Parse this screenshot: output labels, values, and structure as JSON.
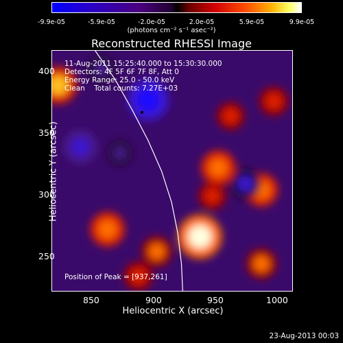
{
  "colorbar": {
    "ticks": [
      "-9.9e-05",
      "-5.9e-05",
      "-2.0e-05",
      "2.0e-05",
      "5.9e-05",
      "9.9e-05"
    ],
    "unit": "(photons cm⁻² s⁻¹ asec⁻²)"
  },
  "chart_data": {
    "type": "heatmap",
    "title": "Reconstructed RHESSI Image",
    "xlabel": "Heliocentric X (arcsec)",
    "ylabel": "Heliocentric Y (arcsec)",
    "xlim": [
      815,
      1010
    ],
    "ylim": [
      218,
      413
    ],
    "x_ticks": [
      "850",
      "900",
      "950",
      "1000"
    ],
    "y_ticks": [
      "250",
      "300",
      "350",
      "400"
    ],
    "colorbar_range": [
      -9.9e-05,
      9.9e-05
    ],
    "annotations": [
      "11-Aug-2011 15:25:40.000 to 15:30:30.000",
      "Detectors: 4F 5F 6F 7F 8F, Att 0",
      "Energy Range: 25.0 - 50.0 keV",
      "Clean    Total counts: 7.27E+03"
    ],
    "peak_label": "Position of Peak = [937,261]",
    "peak": {
      "x": 937,
      "y": 261
    },
    "marked_point": {
      "x": 888,
      "y": 363
    },
    "sources": [
      {
        "x": 935,
        "y": 262,
        "value": 9.9e-05
      },
      {
        "x": 820,
        "y": 385,
        "value": 7.5e-05
      },
      {
        "x": 950,
        "y": 318,
        "value": 6.5e-05
      },
      {
        "x": 985,
        "y": 300,
        "value": 6e-05
      },
      {
        "x": 860,
        "y": 268,
        "value": 6.5e-05
      },
      {
        "x": 900,
        "y": 250,
        "value": 5e-05
      },
      {
        "x": 995,
        "y": 372,
        "value": 4.5e-05
      },
      {
        "x": 960,
        "y": 360,
        "value": 4e-05
      },
      {
        "x": 885,
        "y": 230,
        "value": 4.5e-05
      },
      {
        "x": 985,
        "y": 240,
        "value": 5e-05
      },
      {
        "x": 945,
        "y": 295,
        "value": 4e-05
      },
      {
        "x": 838,
        "y": 335,
        "value": -6e-05
      },
      {
        "x": 893,
        "y": 373,
        "value": -9e-05
      },
      {
        "x": 972,
        "y": 305,
        "value": -5e-05
      },
      {
        "x": 855,
        "y": 398,
        "value": -4e-05
      },
      {
        "x": 870,
        "y": 330,
        "value": -3e-05
      }
    ],
    "limb_curve": [
      [
        850,
        413
      ],
      [
        866,
        390
      ],
      [
        880,
        365
      ],
      [
        893,
        340
      ],
      [
        904,
        315
      ],
      [
        912,
        290
      ],
      [
        917,
        265
      ],
      [
        920,
        240
      ],
      [
        921,
        218
      ]
    ],
    "grid": false,
    "legend": "none"
  },
  "footer": {
    "timestamp": "23-Aug-2013 00:03"
  }
}
